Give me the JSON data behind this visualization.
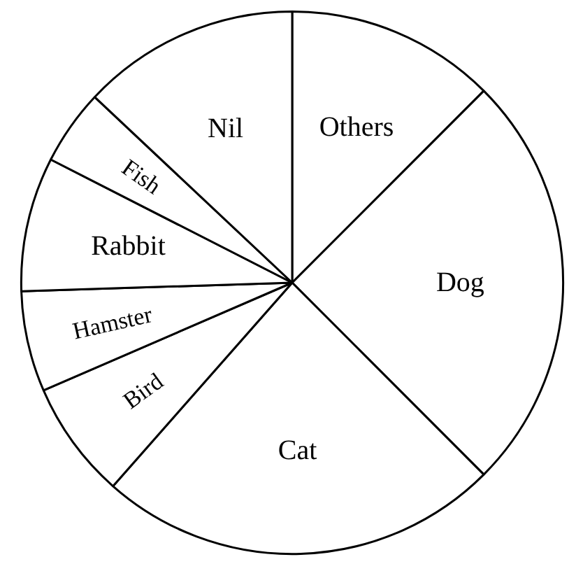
{
  "chart_data": {
    "type": "pie",
    "categories": [
      "Others",
      "Dog",
      "Cat",
      "Bird",
      "Hamster",
      "Rabbit",
      "Fish",
      "Nil"
    ],
    "values": [
      12.5,
      25,
      24,
      7,
      6,
      8,
      4.5,
      13
    ],
    "colors": [
      "#ffffff",
      "#ffffff",
      "#ffffff",
      "#ffffff",
      "#ffffff",
      "#ffffff",
      "#ffffff",
      "#ffffff"
    ]
  }
}
